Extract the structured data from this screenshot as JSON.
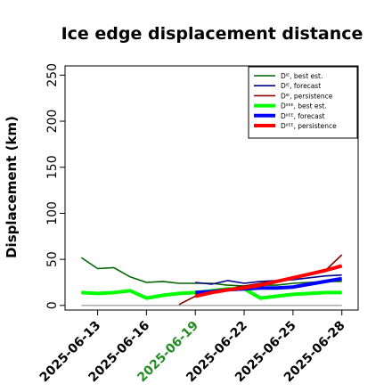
{
  "chart_data": {
    "type": "line",
    "title": "Ice edge displacement distance",
    "xlabel": "",
    "ylabel": "Displacement (km)",
    "ylim": [
      -5,
      260
    ],
    "xlim": [
      "2025-06-11",
      "2025-06-29"
    ],
    "yticks": [
      0,
      50,
      100,
      150,
      200,
      250
    ],
    "xticks": [
      {
        "label": "2025-06-13",
        "color": "#000000"
      },
      {
        "label": "2025-06-16",
        "color": "#000000"
      },
      {
        "label": "2025-06-19",
        "color": "#228B22"
      },
      {
        "label": "2025-06-22",
        "color": "#000000"
      },
      {
        "label": "2025-06-25",
        "color": "#000000"
      },
      {
        "label": "2025-06-28",
        "color": "#000000"
      }
    ],
    "zero_line": {
      "x": [
        "2025-06-12",
        "2025-06-28"
      ],
      "y": [
        0,
        0
      ],
      "color": "#808080"
    },
    "legend_position": "top-right",
    "series": [
      {
        "name": "Dᴵᴱ, best est.",
        "color": "#006400",
        "width": 1.6,
        "x": [
          "2025-06-12",
          "2025-06-13",
          "2025-06-14",
          "2025-06-15",
          "2025-06-16",
          "2025-06-17",
          "2025-06-18",
          "2025-06-19",
          "2025-06-20",
          "2025-06-21",
          "2025-06-22",
          "2025-06-23",
          "2025-06-24",
          "2025-06-25",
          "2025-06-26",
          "2025-06-27",
          "2025-06-28"
        ],
        "y": [
          52,
          40,
          41,
          31,
          25,
          26,
          24,
          24,
          24,
          22,
          21,
          22,
          22,
          24,
          25,
          26,
          26
        ]
      },
      {
        "name": "Dᴵᴱ, forecast",
        "color": "#00008B",
        "width": 1.6,
        "x": [
          "2025-06-19",
          "2025-06-20",
          "2025-06-21",
          "2025-06-22",
          "2025-06-23",
          "2025-06-24",
          "2025-06-25",
          "2025-06-26",
          "2025-06-27",
          "2025-06-28"
        ],
        "y": [
          25,
          23,
          27,
          24,
          26,
          27,
          28,
          30,
          32,
          33
        ]
      },
      {
        "name": "Dᴵᴱ, persistence",
        "color": "#8B0000",
        "width": 1.6,
        "x": [
          "2025-06-18",
          "2025-06-19",
          "2025-06-20",
          "2025-06-21",
          "2025-06-22",
          "2025-06-23",
          "2025-06-24",
          "2025-06-25",
          "2025-06-26",
          "2025-06-27",
          "2025-06-28"
        ],
        "y": [
          1,
          10,
          15,
          18,
          21,
          24,
          27,
          30,
          33,
          38,
          55
        ]
      },
      {
        "name": "Dᴵᴵᴱᴱ, best est.",
        "color": "#00FF00",
        "width": 4,
        "x": [
          "2025-06-12",
          "2025-06-13",
          "2025-06-14",
          "2025-06-15",
          "2025-06-16",
          "2025-06-17",
          "2025-06-18",
          "2025-06-19",
          "2025-06-20",
          "2025-06-21",
          "2025-06-22",
          "2025-06-23",
          "2025-06-24",
          "2025-06-25",
          "2025-06-26",
          "2025-06-27",
          "2025-06-28"
        ],
        "y": [
          14,
          13,
          14,
          16,
          8,
          11,
          13,
          14,
          16,
          18,
          18,
          8,
          10,
          12,
          13,
          14,
          14
        ]
      },
      {
        "name": "Dᴵᴵᴱᴱ, forecast",
        "color": "#0000FF",
        "width": 4,
        "x": [
          "2025-06-19",
          "2025-06-20",
          "2025-06-21",
          "2025-06-22",
          "2025-06-23",
          "2025-06-24",
          "2025-06-25",
          "2025-06-26",
          "2025-06-27",
          "2025-06-28"
        ],
        "y": [
          14,
          15,
          17,
          18,
          19,
          19,
          20,
          23,
          26,
          29
        ]
      },
      {
        "name": "Dᴵᴵᴱᴱ, persistence",
        "color": "#FF0000",
        "width": 4,
        "x": [
          "2025-06-19",
          "2025-06-20",
          "2025-06-21",
          "2025-06-22",
          "2025-06-23",
          "2025-06-24",
          "2025-06-25",
          "2025-06-26",
          "2025-06-27",
          "2025-06-28"
        ],
        "y": [
          10,
          14,
          17,
          19,
          22,
          26,
          30,
          34,
          38,
          43
        ]
      }
    ]
  }
}
